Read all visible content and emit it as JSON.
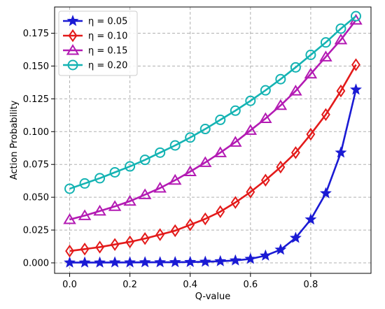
{
  "chart_data": {
    "type": "line",
    "xlabel": "Q-value",
    "ylabel": "Action Probability",
    "xlim": [
      -0.05,
      1.0
    ],
    "ylim": [
      -0.008,
      0.195
    ],
    "xticks": [
      "0.0",
      "0.2",
      "0.4",
      "0.6",
      "0.8"
    ],
    "yticks": [
      "0.000",
      "0.025",
      "0.050",
      "0.075",
      "0.100",
      "0.125",
      "0.150",
      "0.175"
    ],
    "grid": true,
    "legend_position": "top-left",
    "x": [
      0.0,
      0.05,
      0.1,
      0.15,
      0.2,
      0.25,
      0.3,
      0.35,
      0.4,
      0.45,
      0.5,
      0.55,
      0.6,
      0.65,
      0.7,
      0.75,
      0.8,
      0.85,
      0.9,
      0.95
    ],
    "series": [
      {
        "name": "η = 0.05",
        "color": "#1a1ad4",
        "marker": "star",
        "values": [
          0.0002,
          0.0002,
          0.0002,
          0.0003,
          0.0003,
          0.0004,
          0.0004,
          0.0005,
          0.0006,
          0.0008,
          0.0012,
          0.0018,
          0.003,
          0.0055,
          0.01,
          0.019,
          0.033,
          0.053,
          0.084,
          0.132
        ]
      },
      {
        "name": "η = 0.10",
        "color": "#e31a1a",
        "marker": "diamond",
        "values": [
          0.009,
          0.0105,
          0.012,
          0.014,
          0.016,
          0.0185,
          0.0215,
          0.0245,
          0.029,
          0.0335,
          0.039,
          0.046,
          0.054,
          0.063,
          0.073,
          0.084,
          0.098,
          0.113,
          0.131,
          0.151
        ]
      },
      {
        "name": "η = 0.15",
        "color": "#b31ab3",
        "marker": "triangle",
        "values": [
          0.033,
          0.036,
          0.0395,
          0.043,
          0.047,
          0.052,
          0.057,
          0.063,
          0.0695,
          0.0765,
          0.084,
          0.092,
          0.101,
          0.11,
          0.12,
          0.131,
          0.144,
          0.157,
          0.17,
          0.185
        ]
      },
      {
        "name": "η = 0.20",
        "color": "#14b3b3",
        "marker": "circle",
        "values": [
          0.0565,
          0.0605,
          0.0645,
          0.069,
          0.0735,
          0.0785,
          0.084,
          0.0895,
          0.0955,
          0.102,
          0.109,
          0.116,
          0.1235,
          0.1315,
          0.14,
          0.149,
          0.1585,
          0.168,
          0.1785,
          0.188
        ]
      }
    ]
  }
}
